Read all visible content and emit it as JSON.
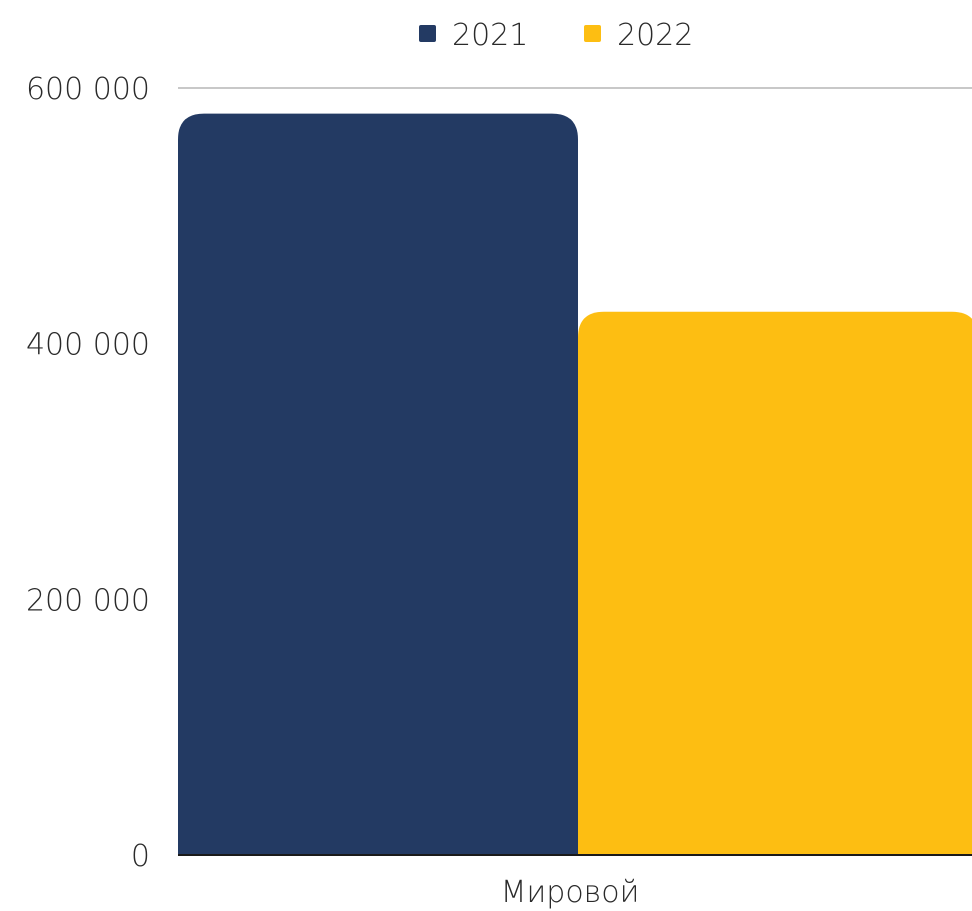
{
  "chart_data": {
    "type": "bar",
    "categories": [
      "Мировой"
    ],
    "series": [
      {
        "name": "2021",
        "values": [
          580000
        ],
        "color": "#233a63"
      },
      {
        "name": "2022",
        "values": [
          425000
        ],
        "color": "#fdbe12"
      }
    ],
    "ylim": [
      0,
      600000
    ],
    "yticks": [
      0,
      200000,
      400000,
      600000
    ],
    "ytick_labels": [
      "0",
      "200 000",
      "400 000",
      "600 000"
    ],
    "grid": "top-line-only",
    "legend": "top-center"
  }
}
